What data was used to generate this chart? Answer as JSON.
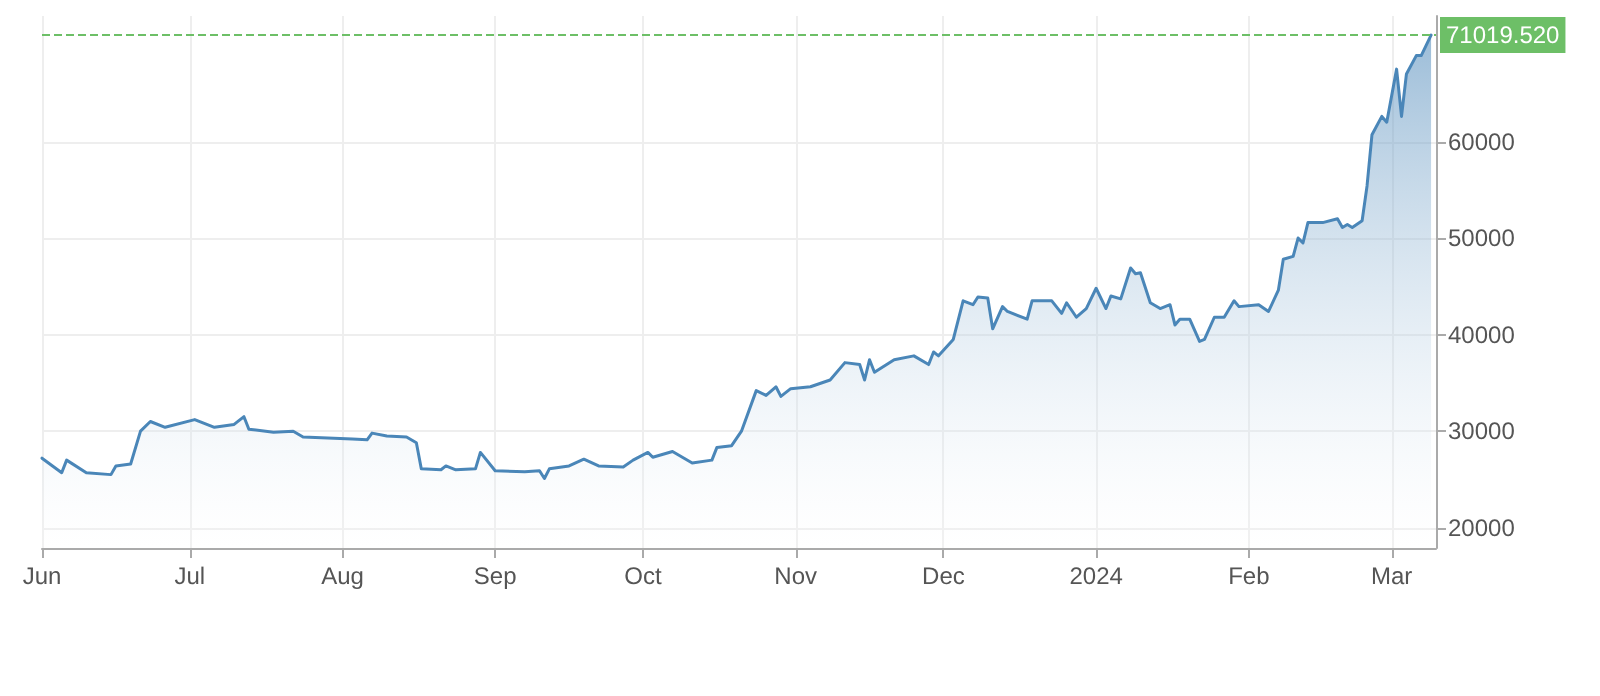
{
  "chart_data": {
    "type": "area",
    "x": [
      "2023-06-01",
      "2023-06-05",
      "2023-06-06",
      "2023-06-10",
      "2023-06-15",
      "2023-06-16",
      "2023-06-19",
      "2023-06-21",
      "2023-06-23",
      "2023-06-26",
      "2023-07-02",
      "2023-07-06",
      "2023-07-10",
      "2023-07-12",
      "2023-07-13",
      "2023-07-18",
      "2023-07-22",
      "2023-07-24",
      "2023-08-03",
      "2023-08-06",
      "2023-08-07",
      "2023-08-10",
      "2023-08-14",
      "2023-08-16",
      "2023-08-17",
      "2023-08-21",
      "2023-08-22",
      "2023-08-24",
      "2023-08-28",
      "2023-08-29",
      "2023-09-01",
      "2023-09-07",
      "2023-09-10",
      "2023-09-11",
      "2023-09-12",
      "2023-09-16",
      "2023-09-19",
      "2023-09-22",
      "2023-09-27",
      "2023-09-29",
      "2023-10-02",
      "2023-10-03",
      "2023-10-07",
      "2023-10-11",
      "2023-10-15",
      "2023-10-16",
      "2023-10-19",
      "2023-10-21",
      "2023-10-24",
      "2023-10-26",
      "2023-10-28",
      "2023-10-29",
      "2023-10-31",
      "2023-11-04",
      "2023-11-08",
      "2023-11-11",
      "2023-11-14",
      "2023-11-15",
      "2023-11-16",
      "2023-11-17",
      "2023-11-21",
      "2023-11-25",
      "2023-11-28",
      "2023-11-29",
      "2023-11-30",
      "2023-12-03",
      "2023-12-05",
      "2023-12-07",
      "2023-12-08",
      "2023-12-10",
      "2023-12-11",
      "2023-12-13",
      "2023-12-14",
      "2023-12-18",
      "2023-12-19",
      "2023-12-23",
      "2023-12-25",
      "2023-12-26",
      "2023-12-28",
      "2023-12-30",
      "2024-01-01",
      "2024-01-03",
      "2024-01-04",
      "2024-01-06",
      "2024-01-08",
      "2024-01-09",
      "2024-01-10",
      "2024-01-12",
      "2024-01-14",
      "2024-01-16",
      "2024-01-17",
      "2024-01-18",
      "2024-01-20",
      "2024-01-22",
      "2024-01-23",
      "2024-01-25",
      "2024-01-27",
      "2024-01-29",
      "2024-01-30",
      "2024-02-03",
      "2024-02-05",
      "2024-02-07",
      "2024-02-08",
      "2024-02-10",
      "2024-02-11",
      "2024-02-12",
      "2024-02-13",
      "2024-02-16",
      "2024-02-19",
      "2024-02-20",
      "2024-02-21",
      "2024-02-22",
      "2024-02-24",
      "2024-02-25",
      "2024-02-26",
      "2024-02-28",
      "2024-02-29",
      "2024-03-02",
      "2024-03-03",
      "2024-03-04",
      "2024-03-06",
      "2024-03-07",
      "2024-03-09"
    ],
    "series": [
      {
        "color": "#4a86b8",
        "values": [
          27200,
          25700,
          27000,
          25700,
          25500,
          26400,
          26600,
          30000,
          31000,
          30400,
          31200,
          30400,
          30700,
          31500,
          30200,
          29900,
          30000,
          29400,
          29200,
          29100,
          29800,
          29500,
          29400,
          28800,
          26100,
          26000,
          26400,
          26000,
          26100,
          27800,
          25900,
          25800,
          25900,
          25100,
          26100,
          26400,
          27100,
          26400,
          26300,
          27000,
          27800,
          27300,
          27900,
          26700,
          27000,
          28300,
          28500,
          30000,
          34200,
          33700,
          34600,
          33600,
          34400,
          34600,
          35300,
          37100,
          36900,
          35300,
          37400,
          36100,
          37400,
          37800,
          36900,
          38200,
          37800,
          39500,
          43500,
          43100,
          43900,
          43800,
          40600,
          42900,
          42400,
          41600,
          43500,
          43500,
          42200,
          43300,
          41800,
          42700,
          44800,
          42700,
          44000,
          43700,
          46900,
          46300,
          46400,
          43300,
          42700,
          43100,
          41000,
          41600,
          41600,
          39300,
          39500,
          41800,
          41800,
          43500,
          42900,
          43100,
          42400,
          44600,
          47800,
          48100,
          50000,
          49500,
          51600,
          51600,
          52000,
          51100,
          51400,
          51100,
          51800,
          55400,
          60700,
          62600,
          62000,
          67500,
          62600,
          67000,
          68900,
          68900,
          71019.52
        ]
      }
    ],
    "xlim": [
      "2023-06-01",
      "2024-03-10"
    ],
    "xticks": [
      {
        "value": "2023-06-01",
        "label": "Jun"
      },
      {
        "value": "2023-07-01",
        "label": "Jul"
      },
      {
        "value": "2023-08-01",
        "label": "Aug"
      },
      {
        "value": "2023-09-01",
        "label": "Sep"
      },
      {
        "value": "2023-10-01",
        "label": "Oct"
      },
      {
        "value": "2023-11-01",
        "label": "Nov"
      },
      {
        "value": "2023-12-01",
        "label": "Dec"
      },
      {
        "value": "2024-01-01",
        "label": "2024"
      },
      {
        "value": "2024-02-01",
        "label": "Feb"
      },
      {
        "value": "2024-03-01",
        "label": "Mar"
      }
    ],
    "ylim": [
      17900,
      73000
    ],
    "yticks": [
      20000,
      30000,
      40000,
      50000,
      60000
    ],
    "ref_lines": [
      {
        "axis": "y",
        "value": 71019.52,
        "label": "71019.520",
        "color": "#6dbf67",
        "line_style": "dashed"
      }
    ],
    "grid": true,
    "marker": "none",
    "line_style": "solid"
  }
}
